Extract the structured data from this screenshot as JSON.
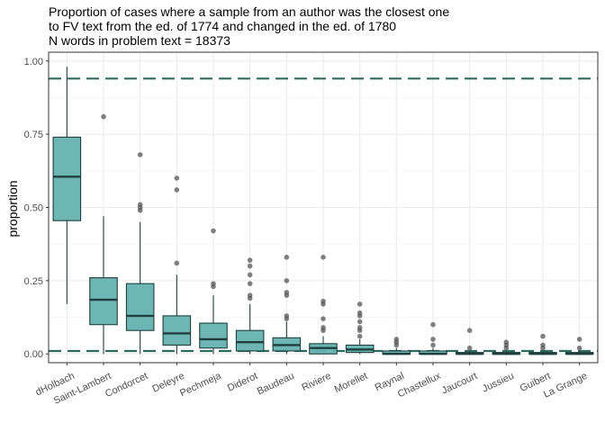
{
  "chart_data": {
    "type": "boxplot",
    "title_lines": [
      "Proportion of cases where a sample from an author was the closest one",
      "to FV text from the ed. of 1774 and changed in the ed. of 1780",
      "N words in problem text = 18373"
    ],
    "xlabel": "",
    "ylabel": "proportion",
    "ylim": [
      -0.03,
      1.03
    ],
    "y_ticks": [
      0.0,
      0.25,
      0.5,
      0.75,
      1.0
    ],
    "y_tick_labels": [
      "0.00",
      "0.25",
      "0.50",
      "0.75",
      "1.00"
    ],
    "reference_lines": [
      0.94,
      0.01
    ],
    "grid": true,
    "colors": {
      "box_fill": "#66b2b0",
      "box_stroke": "#1f3f3f",
      "median": "#1f3f3f",
      "outlier": "#555555",
      "reference_line": "#2e6b5e",
      "grid_major": "#ebebeb",
      "grid_minor": "#f5f5f5",
      "panel_border": "#333333"
    },
    "categories": [
      "dHolbach",
      "Saint-Lambert",
      "Condorcet",
      "Deleyre",
      "Pechmeja",
      "Diderot",
      "Baudeau",
      "Riviere",
      "Morellet",
      "Raynal",
      "Chastellux",
      "Jaucourt",
      "Jussieu",
      "Guibert",
      "La Grange"
    ],
    "boxes": [
      {
        "category": "dHolbach",
        "whisker_low": 0.17,
        "q1": 0.455,
        "median": 0.605,
        "q3": 0.74,
        "whisker_high": 0.98,
        "outliers": []
      },
      {
        "category": "Saint-Lambert",
        "whisker_low": 0.0,
        "q1": 0.1,
        "median": 0.185,
        "q3": 0.26,
        "whisker_high": 0.47,
        "outliers": [
          0.81
        ]
      },
      {
        "category": "Condorcet",
        "whisker_low": 0.0,
        "q1": 0.08,
        "median": 0.13,
        "q3": 0.24,
        "whisker_high": 0.45,
        "outliers": [
          0.49,
          0.5,
          0.51,
          0.68
        ]
      },
      {
        "category": "Deleyre",
        "whisker_low": 0.0,
        "q1": 0.03,
        "median": 0.07,
        "q3": 0.13,
        "whisker_high": 0.27,
        "outliers": [
          0.31,
          0.56,
          0.6
        ]
      },
      {
        "category": "Pechmeja",
        "whisker_low": 0.0,
        "q1": 0.02,
        "median": 0.05,
        "q3": 0.105,
        "whisker_high": 0.2,
        "outliers": [
          0.23,
          0.24,
          0.42
        ]
      },
      {
        "category": "Diderot",
        "whisker_low": 0.0,
        "q1": 0.01,
        "median": 0.04,
        "q3": 0.08,
        "whisker_high": 0.17,
        "outliers": [
          0.19,
          0.2,
          0.24,
          0.27,
          0.3,
          0.32
        ]
      },
      {
        "category": "Baudeau",
        "whisker_low": 0.0,
        "q1": 0.01,
        "median": 0.03,
        "q3": 0.055,
        "whisker_high": 0.11,
        "outliers": [
          0.12,
          0.13,
          0.2,
          0.21,
          0.25,
          0.33
        ]
      },
      {
        "category": "Riviere",
        "whisker_low": 0.0,
        "q1": 0.0,
        "median": 0.02,
        "q3": 0.035,
        "whisker_high": 0.06,
        "outliers": [
          0.08,
          0.09,
          0.12,
          0.17,
          0.18,
          0.33
        ]
      },
      {
        "category": "Morellet",
        "whisker_low": 0.0,
        "q1": 0.005,
        "median": 0.015,
        "q3": 0.03,
        "whisker_high": 0.05,
        "outliers": [
          0.06,
          0.08,
          0.09,
          0.11,
          0.13,
          0.14,
          0.17
        ]
      },
      {
        "category": "Raynal",
        "whisker_low": 0.0,
        "q1": 0.0,
        "median": 0.0,
        "q3": 0.01,
        "whisker_high": 0.02,
        "outliers": [
          0.03,
          0.04,
          0.05
        ]
      },
      {
        "category": "Chastellux",
        "whisker_low": 0.0,
        "q1": 0.0,
        "median": 0.0,
        "q3": 0.01,
        "whisker_high": 0.02,
        "outliers": [
          0.03,
          0.05,
          0.1
        ]
      },
      {
        "category": "Jaucourt",
        "whisker_low": 0.0,
        "q1": 0.0,
        "median": 0.0,
        "q3": 0.005,
        "whisker_high": 0.01,
        "outliers": [
          0.02,
          0.08
        ]
      },
      {
        "category": "Jussieu",
        "whisker_low": 0.0,
        "q1": 0.0,
        "median": 0.0,
        "q3": 0.005,
        "whisker_high": 0.01,
        "outliers": [
          0.02,
          0.03,
          0.04
        ]
      },
      {
        "category": "Guibert",
        "whisker_low": 0.0,
        "q1": 0.0,
        "median": 0.0,
        "q3": 0.005,
        "whisker_high": 0.01,
        "outliers": [
          0.02,
          0.03,
          0.06
        ]
      },
      {
        "category": "La Grange",
        "whisker_low": 0.0,
        "q1": 0.0,
        "median": 0.0,
        "q3": 0.005,
        "whisker_high": 0.01,
        "outliers": [
          0.02,
          0.05
        ]
      }
    ]
  }
}
